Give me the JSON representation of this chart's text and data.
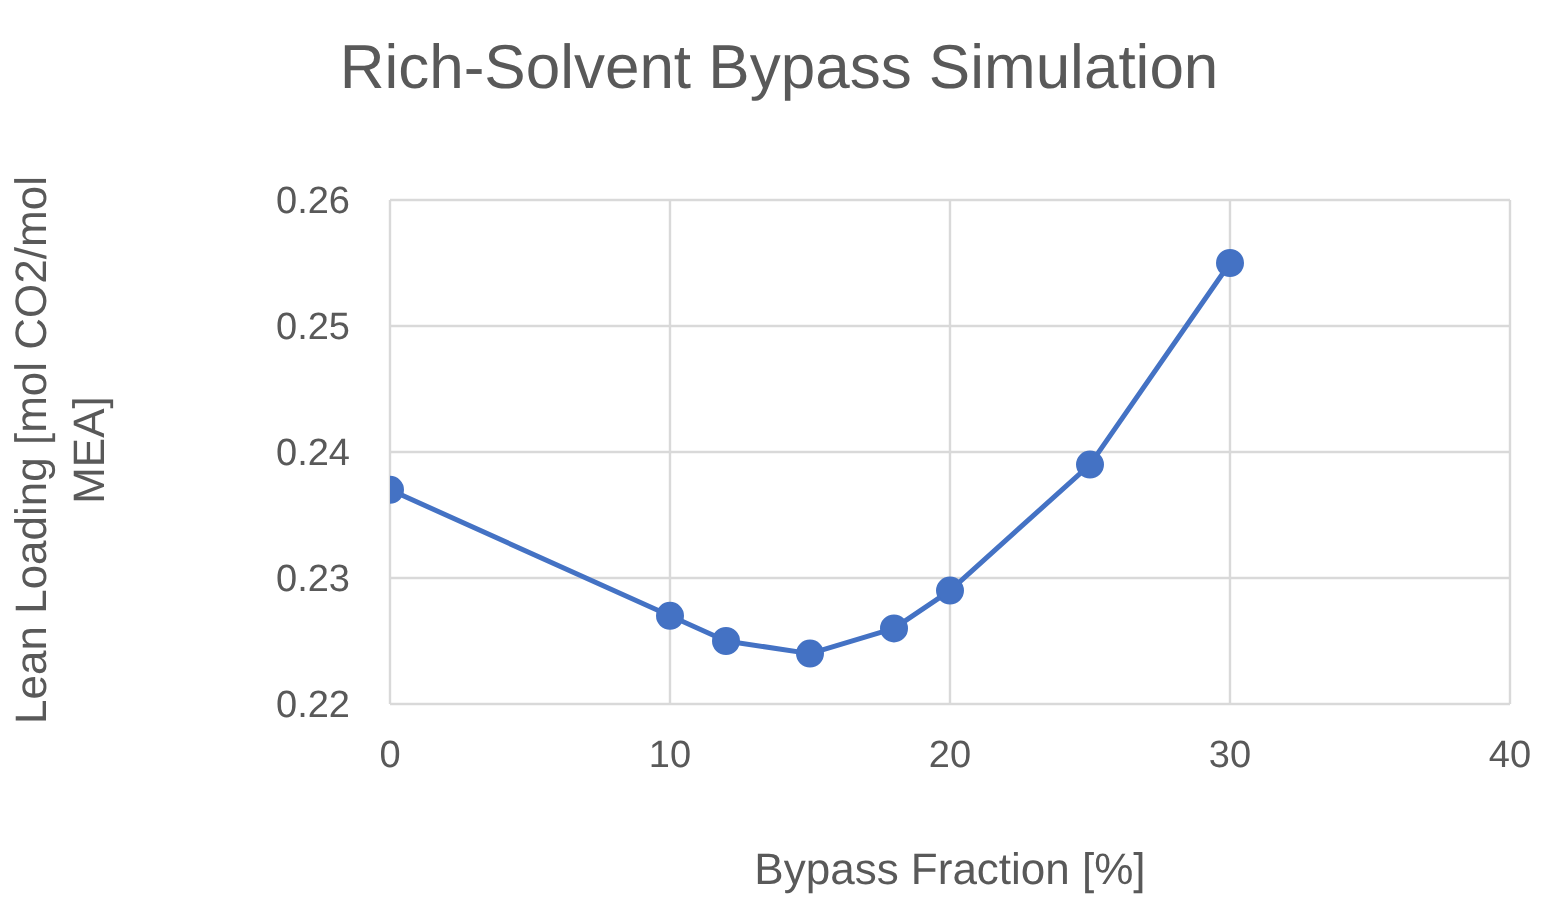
{
  "chart_data": {
    "type": "line",
    "title": "Rich-Solvent Bypass Simulation",
    "xlabel": "Bypass Fraction [%]",
    "ylabel": "Lean Loading [mol CO2/mol MEA]",
    "x": [
      0,
      10,
      12,
      15,
      18,
      20,
      25,
      30
    ],
    "series": [
      {
        "color": "#4472c4",
        "values": [
          0.237,
          0.227,
          0.225,
          0.224,
          0.226,
          0.229,
          0.239,
          0.255
        ]
      }
    ],
    "xlim": [
      0,
      40
    ],
    "xticks": [
      0,
      10,
      20,
      30,
      40
    ],
    "ylim": [
      0.22,
      0.26
    ],
    "yticks": [
      0.22,
      0.23,
      0.24,
      0.25,
      0.26
    ],
    "grid": true,
    "marker": "circle",
    "line_style": "solid"
  }
}
